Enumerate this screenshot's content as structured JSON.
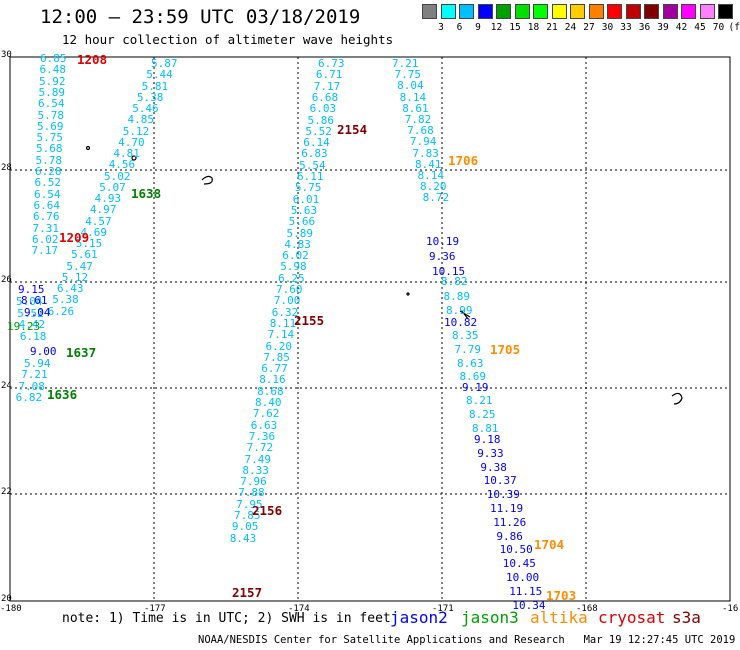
{
  "header": {
    "title": "12:00 – 23:59 UTC 03/18/2019",
    "subtitle": "12 hour collection of altimeter wave heights"
  },
  "colorbar": {
    "unit": "(ft)",
    "colors": [
      "#808080",
      "#00ffff",
      "#00bfff",
      "#0000ff",
      "#00a000",
      "#00e000",
      "#00ff00",
      "#ffff00",
      "#ffcc00",
      "#ff8000",
      "#ff0000",
      "#c00000",
      "#800000",
      "#a000a0",
      "#ff00ff",
      "#ff80ff",
      "#000000"
    ],
    "labels": [
      "3",
      "6",
      "9",
      "12",
      "15",
      "18",
      "21",
      "24",
      "27",
      "30",
      "33",
      "36",
      "39",
      "42",
      "45",
      "70"
    ]
  },
  "map": {
    "lon_ticks": [
      "-180",
      "-177",
      "-174",
      "-171",
      "-168",
      "-16"
    ],
    "lat_ticks": [
      "30",
      "28",
      "26",
      "24",
      "22",
      "20"
    ]
  },
  "tracks": [
    {
      "color": "#00bfff",
      "texts": [
        "6.85",
        "6.48",
        "5.92",
        "5.89",
        "6.54",
        "5.78",
        "5.69",
        "5.75",
        "5.68",
        "5.78",
        "6.28",
        "6.52",
        "6.54",
        "6.64",
        "6.76",
        "7.31",
        "6.02",
        "7.17"
      ]
    },
    {
      "color": "#00bfff",
      "texts": [
        "5.87",
        "5.44",
        "5.81",
        "5.38",
        "5.46",
        "4.85",
        "5.12",
        "4.70",
        "4.81",
        "4.56",
        "5.02",
        "5.07",
        "4.93",
        "4.97",
        "4.57",
        "4.69",
        "5.15",
        "5.61",
        "5.47",
        "5.12",
        "6.43",
        "5.38",
        "6.26"
      ]
    },
    {
      "color": "#00bfff",
      "texts": [
        "5.04",
        "5.52",
        "4.42",
        "6.18"
      ]
    },
    {
      "color": "#00bfff",
      "texts": [
        "5.94",
        "7.21",
        "7.08",
        "6.82"
      ]
    },
    {
      "color": "#0000ff",
      "texts": [
        "9.15",
        "8.61",
        "9.04"
      ]
    },
    {
      "color": "#00a000",
      "texts": [
        "19.23"
      ]
    },
    {
      "color": "#0000ff",
      "texts": [
        "9.00"
      ]
    },
    {
      "color": "#00bfff",
      "texts": [
        "6.73",
        "6.71",
        "7.17",
        "6.68",
        "6.03",
        "5.86",
        "5.52",
        "6.14",
        "6.83",
        "5.54",
        "6.11",
        "5.75",
        "6.01",
        "5.63",
        "5.66",
        "5.89",
        "4.83",
        "6.02",
        "5.98",
        "6.25",
        "7.60",
        "7.00",
        "6.32",
        "8.11",
        "7.14",
        "6.20",
        "7.85",
        "6.77",
        "8.16",
        "8.68",
        "8.40",
        "7.62",
        "6.63",
        "7.36",
        "7.72",
        "7.49",
        "8.33",
        "7.96",
        "7.88",
        "7.95",
        "7.85",
        "9.05",
        "8.43"
      ]
    },
    {
      "color": "#00bfff",
      "texts": [
        "7.21",
        "7.75",
        "8.04",
        "8.14",
        "8.61",
        "7.82",
        "7.68",
        "7.94",
        "7.83",
        "8.41",
        "8.14",
        "8.20",
        "8.72"
      ]
    },
    {
      "color": "#0000ff",
      "texts": [
        "10.19",
        "9.36",
        "10.15"
      ]
    },
    {
      "color": "#00bfff",
      "texts": [
        "8.82",
        "8.89",
        "8.99"
      ]
    },
    {
      "color": "#0000ff",
      "texts": [
        "10.82"
      ]
    },
    {
      "color": "#00bfff",
      "texts": [
        "8.35",
        "7.79",
        "8.63",
        "8.69"
      ]
    },
    {
      "color": "#0000ff",
      "texts": [
        "9.19"
      ]
    },
    {
      "color": "#00bfff",
      "texts": [
        "8.21",
        "8.25",
        "8.81"
      ]
    },
    {
      "color": "#0000ff",
      "texts": [
        "9.18",
        "9.33",
        "9.38",
        "10.37",
        "10.39",
        "11.19",
        "11.26",
        "9.86",
        "10.50",
        "10.45",
        "10.00",
        "11.15",
        "10.34"
      ]
    }
  ],
  "pass_times": [
    {
      "text": "1208",
      "color": "#e00000"
    },
    {
      "text": "1209",
      "color": "#e00000"
    },
    {
      "text": "1638",
      "color": "#008000"
    },
    {
      "text": "1637",
      "color": "#008000"
    },
    {
      "text": "1636",
      "color": "#008000"
    },
    {
      "text": "2154",
      "color": "#800000"
    },
    {
      "text": "2155",
      "color": "#800000"
    },
    {
      "text": "2156",
      "color": "#800000"
    },
    {
      "text": "2157",
      "color": "#800000"
    },
    {
      "text": "1706",
      "color": "#ff8c00"
    },
    {
      "text": "1705",
      "color": "#ff8c00"
    },
    {
      "text": "1704",
      "color": "#ff8c00"
    },
    {
      "text": "1703",
      "color": "#ff8c00"
    }
  ],
  "footer": {
    "note": "note: 1) Time is in UTC; 2) SWH is in feet",
    "satellites": [
      {
        "name": "jason2",
        "color": "#0000ff"
      },
      {
        "name": "jason3",
        "color": "#00a000"
      },
      {
        "name": "altika",
        "color": "#ff8c00"
      },
      {
        "name": "cryosat",
        "color": "#e00000"
      },
      {
        "name": "s3a",
        "color": "#800000"
      }
    ],
    "credit": "NOAA/NESDIS Center for Satellite Applications and Research   Mar 19 12:27:45 UTC 2019"
  }
}
